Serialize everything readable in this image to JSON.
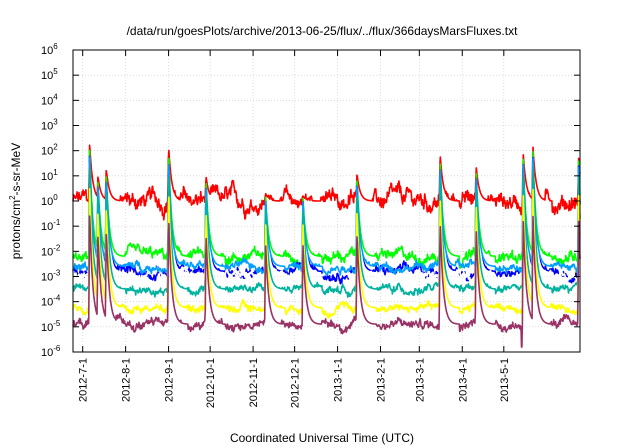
{
  "chart_data": {
    "type": "line",
    "title": "/data/run/goesPlots/archive/2013-06-25/flux/../flux/366daysMarsFluxes.txt",
    "xlabel": "Coordinated Universal Time (UTC)",
    "ylabel_parts": [
      "protons/cm",
      "2",
      "-s-sr-MeV"
    ],
    "x_start": "2012-06-24",
    "x_end": "2013-06-25",
    "yscale": "log",
    "ylim_exp": [
      -6,
      6
    ],
    "y_ticks": [
      {
        "base": "10",
        "exp": "-6"
      },
      {
        "base": "10",
        "exp": "-5"
      },
      {
        "base": "10",
        "exp": "-4"
      },
      {
        "base": "10",
        "exp": "-3"
      },
      {
        "base": "10",
        "exp": "-2"
      },
      {
        "base": "10",
        "exp": "-1"
      },
      {
        "base": "10",
        "exp": "0"
      },
      {
        "base": "10",
        "exp": "1"
      },
      {
        "base": "10",
        "exp": "2"
      },
      {
        "base": "10",
        "exp": "3"
      },
      {
        "base": "10",
        "exp": "4"
      },
      {
        "base": "10",
        "exp": "5"
      },
      {
        "base": "10",
        "exp": "6"
      }
    ],
    "x_ticks": [
      {
        "label": "2012-7-1",
        "date": "2012-07-01"
      },
      {
        "label": "2012-8-1",
        "date": "2012-08-01"
      },
      {
        "label": "2012-9-1",
        "date": "2012-09-01"
      },
      {
        "label": "2012-10-1",
        "date": "2012-10-01"
      },
      {
        "label": "2012-11-1",
        "date": "2012-11-01"
      },
      {
        "label": "2012-12-1",
        "date": "2012-12-01"
      },
      {
        "label": "2013-1-1",
        "date": "2013-01-01"
      },
      {
        "label": "2013-2-1",
        "date": "2013-02-01"
      },
      {
        "label": "2013-3-1",
        "date": "2013-03-01"
      },
      {
        "label": "2013-4-1",
        "date": "2013-04-01"
      },
      {
        "label": "2013-5-1",
        "date": "2013-05-01"
      }
    ],
    "events": [
      {
        "date": "2012-07-06",
        "peak_exp": 2.3
      },
      {
        "date": "2012-07-12",
        "peak_exp": 1.0
      },
      {
        "date": "2012-07-18",
        "peak_exp": 1.3
      },
      {
        "date": "2012-09-01",
        "peak_exp": 2.2
      },
      {
        "date": "2012-09-28",
        "peak_exp": 1.0
      },
      {
        "date": "2012-11-10",
        "peak_exp": 0.3
      },
      {
        "date": "2012-12-07",
        "peak_exp": 0.2
      },
      {
        "date": "2013-01-15",
        "peak_exp": 1.1
      },
      {
        "date": "2013-03-16",
        "peak_exp": 1.9
      },
      {
        "date": "2013-04-11",
        "peak_exp": 1.4
      },
      {
        "date": "2013-05-15",
        "peak_exp": 1.9
      },
      {
        "date": "2013-05-22",
        "peak_exp": 2.2
      },
      {
        "date": "2013-06-24",
        "peak_exp": 1.7
      }
    ],
    "series": [
      {
        "color": "#ff0000",
        "base_exp": 0.0,
        "noise": 0.55,
        "spike_scale": 1.0
      },
      {
        "color": "#00ff00",
        "base_exp": -2.2,
        "noise": 0.35,
        "spike_scale": 0.97
      },
      {
        "color": "#0000ff",
        "base_exp": -2.8,
        "noise": 0.3,
        "spike_scale": 0.93
      },
      {
        "color": "#ffffff",
        "base_exp": -2.95,
        "noise": 0.25,
        "spike_scale": 0.88
      },
      {
        "color": "#009fff",
        "base_exp": -2.6,
        "noise": 0.25,
        "spike_scale": 0.92
      },
      {
        "color": "#00b39f",
        "base_exp": -3.5,
        "noise": 0.25,
        "spike_scale": 0.85
      },
      {
        "color": "#ffff00",
        "base_exp": -4.25,
        "noise": 0.25,
        "spike_scale": 0.75
      },
      {
        "color": "#993366",
        "base_exp": -4.9,
        "noise": 0.3,
        "spike_scale": 0.62
      }
    ]
  }
}
